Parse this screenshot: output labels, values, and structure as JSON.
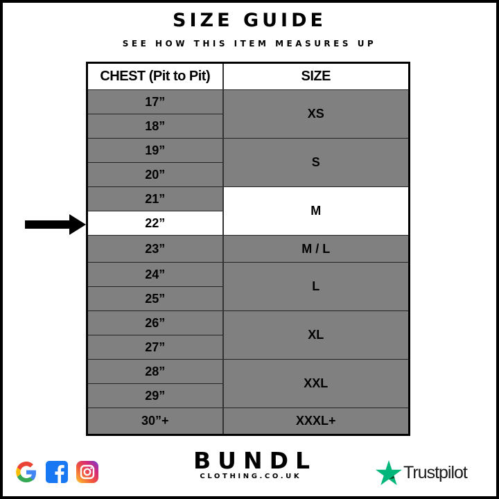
{
  "header": {
    "title": "SIZE GUIDE",
    "subtitle": "SEE HOW THIS ITEM MEASURES UP"
  },
  "table": {
    "columns": [
      "CHEST (Pit to Pit)",
      "SIZE"
    ],
    "chest": [
      "17”",
      "18”",
      "19”",
      "20”",
      "21”",
      "22”",
      "23”",
      "24”",
      "25”",
      "26”",
      "27”",
      "28”",
      "29”",
      "30”+"
    ],
    "sizes": [
      "XS",
      "S",
      "M",
      "M / L",
      "L",
      "XL",
      "XXL",
      "XXXL+"
    ],
    "highlighted_chest": "22”",
    "highlighted_size": "M"
  },
  "colors": {
    "cell_gray": "#808080",
    "highlight": "#ffffff",
    "trustpilot_green": "#00b67a"
  },
  "footer": {
    "social_icons": [
      "google-icon",
      "facebook-icon",
      "instagram-icon"
    ],
    "brand": "BUNDL",
    "brand_sub": "CLOTHING.CO.UK",
    "trustpilot": "Trustpilot"
  }
}
